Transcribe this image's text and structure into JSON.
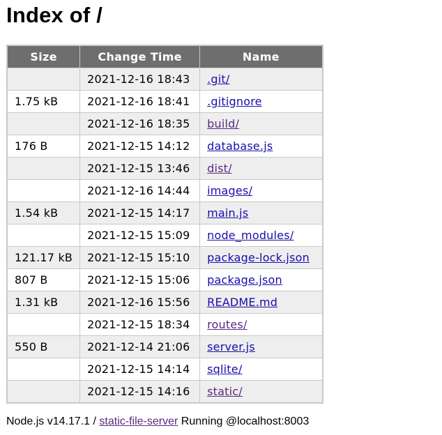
{
  "page": {
    "title": "Index of /"
  },
  "table": {
    "headers": {
      "size": "Size",
      "change_time": "Change Time",
      "name": "Name"
    },
    "rows": [
      {
        "size": "",
        "time": "2021-12-16 18:43",
        "name": ".git/",
        "visited": false
      },
      {
        "size": "1.75 kB",
        "time": "2021-12-16 18:41",
        "name": ".gitignore",
        "visited": false
      },
      {
        "size": "",
        "time": "2021-12-16 18:35",
        "name": "build/",
        "visited": true
      },
      {
        "size": "176 B",
        "time": "2021-12-15 14:12",
        "name": "database.js",
        "visited": false
      },
      {
        "size": "",
        "time": "2021-12-15 13:46",
        "name": "dist/",
        "visited": true
      },
      {
        "size": "",
        "time": "2021-12-16 14:44",
        "name": "images/",
        "visited": false
      },
      {
        "size": "1.54 kB",
        "time": "2021-12-15 14:17",
        "name": "main.js",
        "visited": false
      },
      {
        "size": "",
        "time": "2021-12-15 15:09",
        "name": "node_modules/",
        "visited": false
      },
      {
        "size": "121.17 kB",
        "time": "2021-12-15 15:10",
        "name": "package-lock.json",
        "visited": false
      },
      {
        "size": "807 B",
        "time": "2021-12-15 15:06",
        "name": "package.json",
        "visited": false
      },
      {
        "size": "1.31 kB",
        "time": "2021-12-16 15:56",
        "name": "README.md",
        "visited": false
      },
      {
        "size": "",
        "time": "2021-12-15 18:34",
        "name": "routes/",
        "visited": true
      },
      {
        "size": "550 B",
        "time": "2021-12-14 21:06",
        "name": "server.js",
        "visited": false
      },
      {
        "size": "",
        "time": "2021-12-15 14:14",
        "name": "sqlite/",
        "visited": false
      },
      {
        "size": "",
        "time": "2021-12-15 14:16",
        "name": "static/",
        "visited": true
      }
    ]
  },
  "footer": {
    "prefix": "Node.js v14.17.1 / ",
    "link": "static-file-server",
    "suffix": " Running @localhost:8003"
  },
  "colors": {
    "header_bg": "#6e6e6e",
    "row_alt_bg": "#eeeeee",
    "border": "#c8c8c8",
    "link": "#1a0dab",
    "link_visited": "#5a2a82"
  }
}
